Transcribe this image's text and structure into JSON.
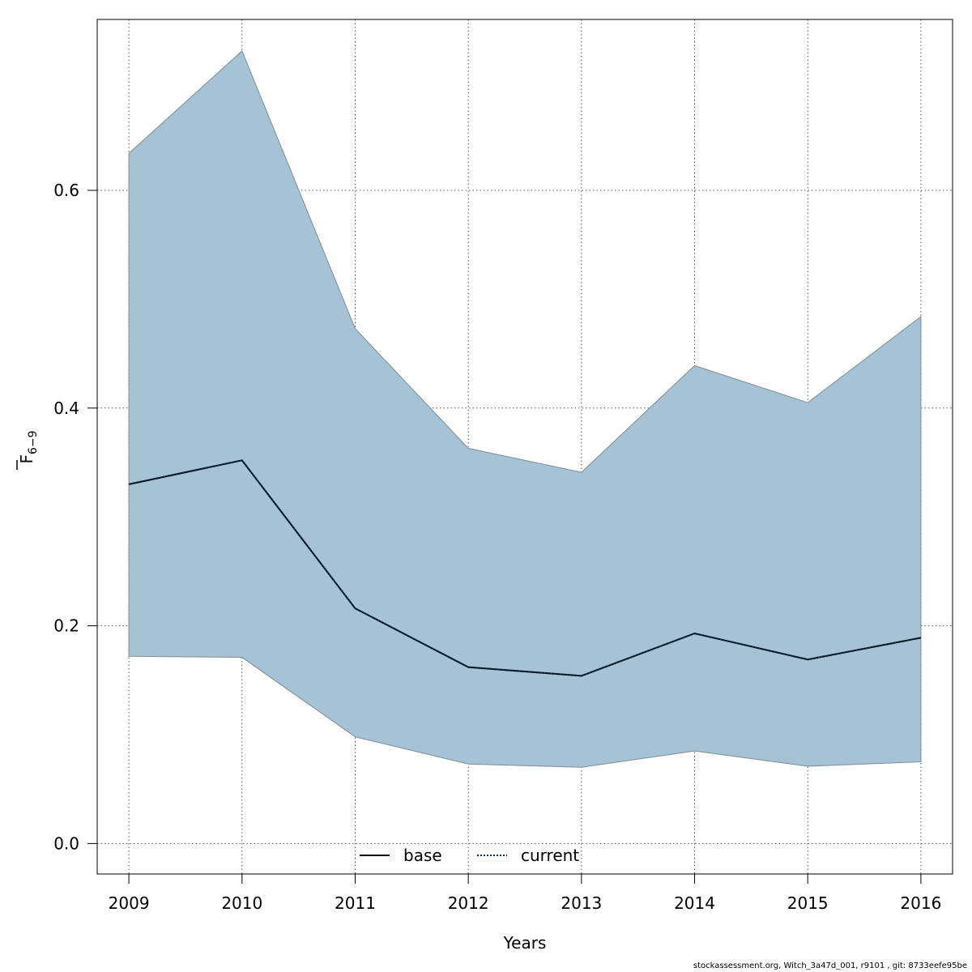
{
  "chart_data": {
    "type": "area",
    "xlabel": "Years",
    "ylabel_main": "F",
    "ylabel_sub": "6−9",
    "x": [
      2009,
      2010,
      2011,
      2012,
      2013,
      2014,
      2015,
      2016
    ],
    "x_ticks": [
      "2009",
      "2010",
      "2011",
      "2012",
      "2013",
      "2014",
      "2015",
      "2016"
    ],
    "xlim": [
      2008.72,
      2016.28
    ],
    "ylim": [
      -0.028,
      0.757
    ],
    "y_ticks": [
      {
        "value": 0.0,
        "label": "0.0"
      },
      {
        "value": 0.2,
        "label": "0.2"
      },
      {
        "value": 0.4,
        "label": "0.4"
      },
      {
        "value": 0.6,
        "label": "0.6"
      }
    ],
    "grid": true,
    "series": [
      {
        "name": "current",
        "style": "dotted",
        "color": "#00324f",
        "values": [
          0.33,
          0.352,
          0.216,
          0.162,
          0.154,
          0.193,
          0.169,
          0.189
        ],
        "ci_lower": [
          0.172,
          0.171,
          0.098,
          0.073,
          0.07,
          0.085,
          0.071,
          0.075
        ],
        "ci_upper": [
          0.634,
          0.728,
          0.473,
          0.363,
          0.341,
          0.439,
          0.405,
          0.484
        ]
      }
    ],
    "band_color": "#a5c3d4",
    "legend": {
      "placement": "bottom-center",
      "entries": [
        {
          "label": "base",
          "style": "solid",
          "color": "#000000"
        },
        {
          "label": "current",
          "style": "dotted",
          "color": "#00324f"
        }
      ]
    }
  },
  "footer": "stockassessment.org, Witch_3a47d_001, r9101 , git: 8733eefe95be"
}
